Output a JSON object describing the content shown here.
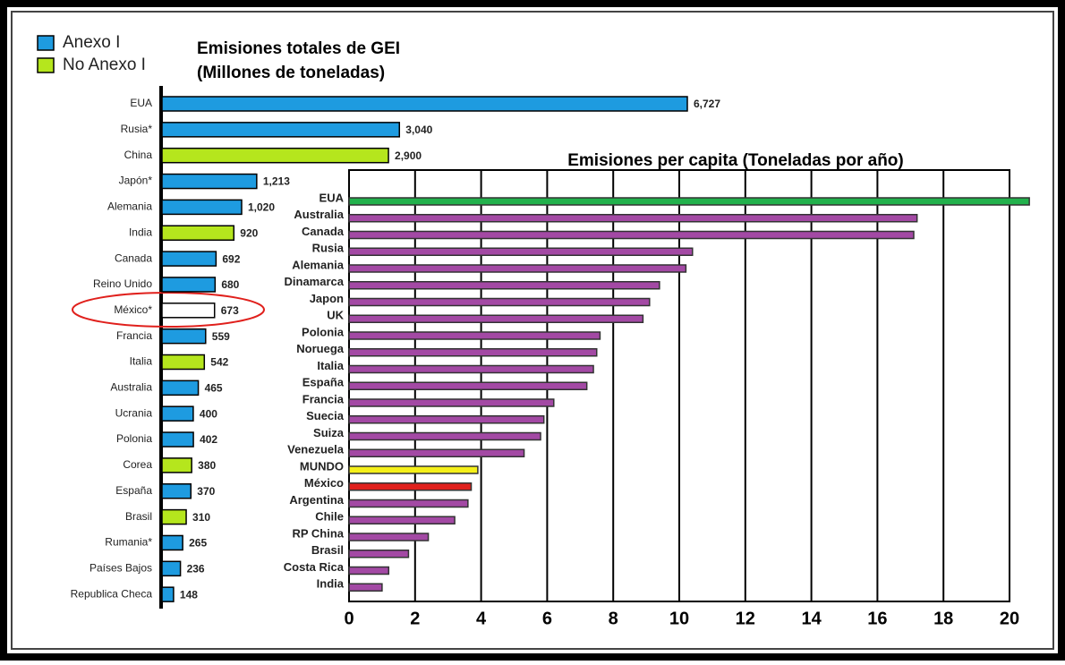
{
  "chart_data": [
    {
      "type": "bar",
      "orientation": "horizontal",
      "title": [
        "Emisiones totales de GEI",
        "(Millones de toneladas)"
      ],
      "legend": [
        {
          "name": "Anexo I",
          "color": "#1e9be0"
        },
        {
          "name": "No Anexo I",
          "color": "#b5e61d"
        }
      ],
      "categories": [
        "EUA",
        "Rusia*",
        "China",
        "Japón*",
        "Alemania",
        "India",
        "Canada",
        "Reino Unido",
        "México*",
        "Francia",
        "Italia",
        "Australia",
        "Ucrania",
        "Polonia",
        "Corea",
        "España",
        "Brasil",
        "Rumania*",
        "Países Bajos",
        "Republica Checa"
      ],
      "values": [
        6727,
        3040,
        2900,
        1213,
        1020,
        920,
        692,
        680,
        673,
        559,
        542,
        465,
        400,
        402,
        380,
        370,
        310,
        265,
        236,
        148
      ],
      "value_labels": [
        "6,727",
        "3,040",
        "2,900",
        "1,213",
        "1,020",
        "920",
        "692",
        "680",
        "673",
        "559",
        "542",
        "465",
        "400",
        "402",
        "380",
        "370",
        "310",
        "265",
        "236",
        "148"
      ],
      "colors": [
        "#1e9be0",
        "#1e9be0",
        "#b5e61d",
        "#1e9be0",
        "#1e9be0",
        "#b5e61d",
        "#1e9be0",
        "#1e9be0",
        "#ffffff",
        "#1e9be0",
        "#b5e61d",
        "#1e9be0",
        "#1e9be0",
        "#1e9be0",
        "#b5e61d",
        "#1e9be0",
        "#b5e61d",
        "#1e9be0",
        "#1e9be0",
        "#1e9be0"
      ]
    },
    {
      "type": "bar",
      "orientation": "horizontal",
      "title": "Emisiones per capita (Toneladas por año)",
      "categories": [
        "EUA",
        "Australia",
        "Canada",
        "Rusia",
        "Alemania",
        "Dinamarca",
        "Japon",
        "UK",
        "Polonia",
        "Noruega",
        "Italia",
        "España",
        "Francia",
        "Suecia",
        "Suiza",
        "Venezuela",
        "MUNDO",
        "México",
        "Argentina",
        "Chile",
        "RP China",
        "Brasil",
        "Costa Rica",
        "India"
      ],
      "values": [
        20.6,
        17.2,
        17.1,
        10.4,
        10.2,
        9.4,
        9.1,
        8.9,
        7.6,
        7.5,
        7.4,
        7.2,
        6.2,
        5.9,
        5.8,
        5.3,
        3.9,
        3.7,
        3.6,
        3.2,
        2.4,
        1.8,
        1.2,
        1.0
      ],
      "colors": [
        "#22b14c",
        "#a349a4",
        "#a349a4",
        "#a349a4",
        "#a349a4",
        "#a349a4",
        "#a349a4",
        "#a349a4",
        "#a349a4",
        "#a349a4",
        "#a349a4",
        "#a349a4",
        "#a349a4",
        "#a349a4",
        "#a349a4",
        "#a349a4",
        "#f5f01a",
        "#e0201c",
        "#a349a4",
        "#a349a4",
        "#a349a4",
        "#a349a4",
        "#a349a4",
        "#a349a4"
      ],
      "xlim": [
        0,
        20
      ],
      "xticks": [
        0,
        2,
        4,
        6,
        8,
        10,
        12,
        14,
        16,
        18,
        20
      ],
      "grid": true
    }
  ]
}
